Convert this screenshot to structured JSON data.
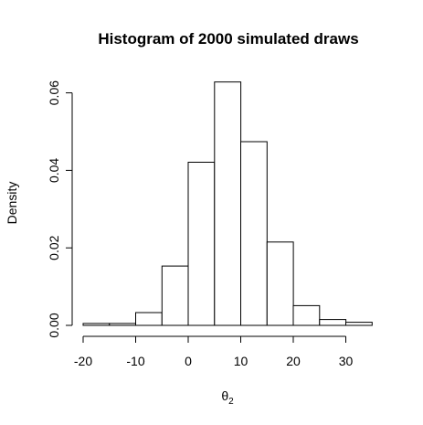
{
  "chart_data": {
    "type": "histogram",
    "title": "Histogram of 2000 simulated draws",
    "xlabel": "θ",
    "xlabel_subscript": "2",
    "ylabel": "Density",
    "bin_width": 5,
    "bin_edges": [
      -20,
      -15,
      -10,
      -5,
      0,
      5,
      10,
      15,
      20,
      25,
      30,
      35
    ],
    "densities": [
      0.0005,
      0.0005,
      0.0033,
      0.0153,
      0.0421,
      0.0628,
      0.0474,
      0.0215,
      0.0051,
      0.0015,
      0.0008
    ],
    "xlim": [
      -20,
      35
    ],
    "ylim": [
      0,
      0.062
    ],
    "x_ticks": [
      -20,
      -10,
      0,
      10,
      20,
      30
    ],
    "x_tick_labels": [
      "-20",
      "-10",
      "0",
      "10",
      "20",
      "30"
    ],
    "y_ticks": [
      0.0,
      0.02,
      0.04,
      0.06
    ],
    "y_tick_labels": [
      "0.00",
      "0.02",
      "0.04",
      "0.06"
    ],
    "grid": false,
    "colors": {
      "bar_fill": "#ffffff",
      "bar_stroke": "#000000"
    }
  }
}
